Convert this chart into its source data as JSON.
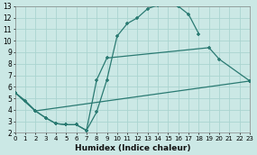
{
  "xlabel": "Humidex (Indice chaleur)",
  "bg_color": "#cbe8e5",
  "grid_color": "#aad4d0",
  "line_color": "#2a7a72",
  "xlim": [
    0,
    23
  ],
  "ylim": [
    2,
    13
  ],
  "xticks": [
    0,
    1,
    2,
    3,
    4,
    5,
    6,
    7,
    8,
    9,
    10,
    11,
    12,
    13,
    14,
    15,
    16,
    17,
    18,
    19,
    20,
    21,
    22,
    23
  ],
  "yticks": [
    2,
    3,
    4,
    5,
    6,
    7,
    8,
    9,
    10,
    11,
    12,
    13
  ],
  "curve1_x": [
    0,
    1,
    2,
    3,
    4,
    5,
    6,
    7,
    8,
    9,
    10,
    11,
    12,
    13,
    14,
    15,
    16,
    17,
    18
  ],
  "curve1_y": [
    5.5,
    4.8,
    3.9,
    3.3,
    2.8,
    2.7,
    2.7,
    2.2,
    3.8,
    6.6,
    10.4,
    11.5,
    12.0,
    12.8,
    13.1,
    13.2,
    13.0,
    12.3,
    10.6
  ],
  "curve2_x": [
    0,
    2,
    3,
    4,
    5,
    6,
    7,
    8,
    9,
    19,
    20,
    23
  ],
  "curve2_y": [
    5.5,
    3.9,
    3.3,
    2.8,
    2.7,
    2.7,
    2.2,
    6.6,
    8.5,
    9.4,
    8.4,
    6.5
  ],
  "curve3_x": [
    0,
    2,
    23
  ],
  "curve3_y": [
    5.5,
    3.9,
    6.5
  ],
  "xlabel_fontsize": 6.5,
  "tick_fontsize_x": 5,
  "tick_fontsize_y": 5.5
}
